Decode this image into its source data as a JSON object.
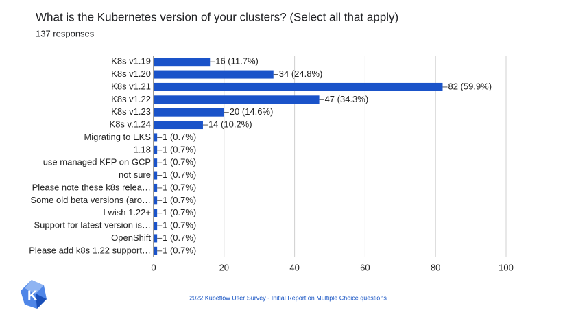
{
  "chart_data": {
    "type": "bar",
    "orientation": "horizontal",
    "title": "What is the Kubernetes version of your clusters? (Select all that apply)",
    "subtitle": "137 responses",
    "categories": [
      "K8s v1.19",
      "K8s v1.20",
      "K8s v1.21",
      "K8s v1.22",
      "K8s v1.23",
      "K8s v.1.24",
      "Migrating to EKS",
      "1.18",
      "use managed KFP on GCP",
      "not sure",
      "Please note these k8s relea…",
      "Some old beta versions (aro…",
      "I wish 1.22+",
      "Support for latest version is…",
      "OpenShift",
      "Please add k8s 1.22 support…"
    ],
    "values": [
      16,
      34,
      82,
      47,
      20,
      14,
      1,
      1,
      1,
      1,
      1,
      1,
      1,
      1,
      1,
      1
    ],
    "value_labels": [
      "16 (11.7%)",
      "34 (24.8%)",
      "82 (59.9%)",
      "47 (34.3%)",
      "20 (14.6%)",
      "14 (10.2%)",
      "1 (0.7%)",
      "1 (0.7%)",
      "1 (0.7%)",
      "1 (0.7%)",
      "1 (0.7%)",
      "1 (0.7%)",
      "1 (0.7%)",
      "1 (0.7%)",
      "1 (0.7%)",
      "1 (0.7%)"
    ],
    "color": "#1a53c9",
    "xlim": [
      0,
      100
    ],
    "xticks": [
      0,
      20,
      40,
      60,
      80,
      100
    ],
    "grid": true
  },
  "footer": "2022 Kubeflow User Survey - Initial Report on Multiple Choice questions"
}
